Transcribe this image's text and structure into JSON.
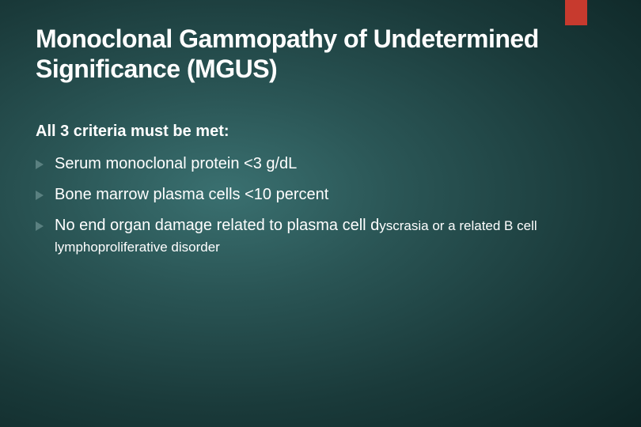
{
  "slide": {
    "title": "Monoclonal Gammopathy of Undetermined Significance (MGUS)",
    "subheading": "All 3 criteria must be met:",
    "bullets": [
      {
        "main": "Serum monoclonal protein <3 g/dL",
        "sub": ""
      },
      {
        "main": "Bone marrow plasma cells <10 percent",
        "sub": ""
      },
      {
        "main": "No end organ damage related to plasma cell d",
        "sub": "yscrasia or a related B cell lymphoproliferative disorder"
      }
    ]
  },
  "style": {
    "accent_color": "#c73a2e",
    "bullet_color": "#5a8080",
    "text_color": "#ffffff",
    "bg_gradient_inner": "#3a7070",
    "bg_gradient_outer": "#0d2525",
    "title_fontsize": 32,
    "subheading_fontsize": 20,
    "bullet_fontsize": 20,
    "sub_fontsize": 17
  }
}
